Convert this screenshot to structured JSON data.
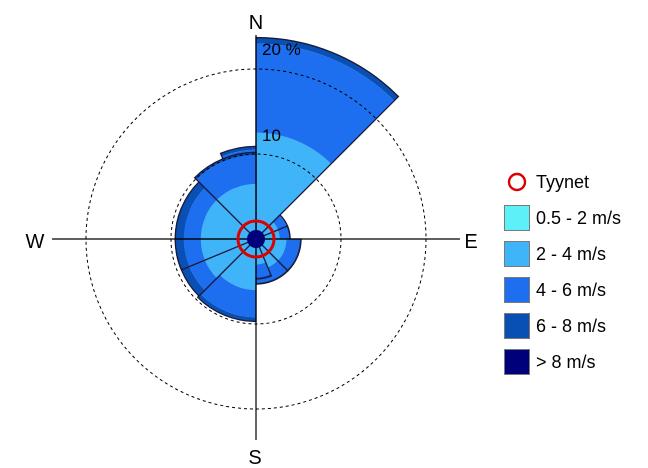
{
  "chart_data": {
    "type": "windrose",
    "unit": "%",
    "directions": [
      {
        "dir": "N",
        "cum": [
          0.8,
          4.2,
          10.5,
          10.9
        ]
      },
      {
        "dir": "NNE",
        "cum": [
          0.8,
          12.5,
          23.0,
          23.7
        ]
      },
      {
        "dir": "ENE",
        "cum": [
          0.8,
          2.8,
          3.9,
          4.0
        ]
      },
      {
        "dir": "E",
        "cum": [
          0.8,
          2.8,
          3.9,
          4.0
        ]
      },
      {
        "dir": "ESE",
        "cum": [
          0.8,
          3.6,
          5.1,
          5.3
        ]
      },
      {
        "dir": "SSE",
        "cum": [
          0.8,
          3.6,
          5.1,
          5.3
        ]
      },
      {
        "dir": "S",
        "cum": [
          0.8,
          3.0,
          4.5,
          4.7
        ]
      },
      {
        "dir": "SSW",
        "cum": [
          0.8,
          6.0,
          9.2,
          9.7
        ]
      },
      {
        "dir": "WSW",
        "cum": [
          0.8,
          6.5,
          8.5,
          9.5
        ]
      },
      {
        "dir": "W",
        "cum": [
          0.8,
          6.5,
          8.5,
          9.5
        ]
      },
      {
        "dir": "WNW",
        "cum": [
          0.8,
          6.5,
          8.5,
          9.5
        ]
      },
      {
        "dir": "NNW",
        "cum": [
          0.8,
          6.5,
          9.9,
          10.2
        ]
      }
    ],
    "rings": [
      10,
      20
    ],
    "ring_labels": [
      "10",
      "20 %"
    ],
    "compass": [
      "N",
      "E",
      "S",
      "W"
    ],
    "legend": [
      {
        "label": "Tyynet",
        "marker": "calm-circle",
        "color": "#dd0000"
      },
      {
        "label": "0.5 - 2 m/s",
        "color": "#5ef0f8"
      },
      {
        "label": "2 - 4 m/s",
        "color": "#40b4f8"
      },
      {
        "label": "4 - 6 m/s",
        "color": "#1e6ef0"
      },
      {
        "label": "6 - 8 m/s",
        "color": "#0850b4"
      },
      {
        "label": "> 8 m/s",
        "color": "#00007a"
      }
    ]
  }
}
